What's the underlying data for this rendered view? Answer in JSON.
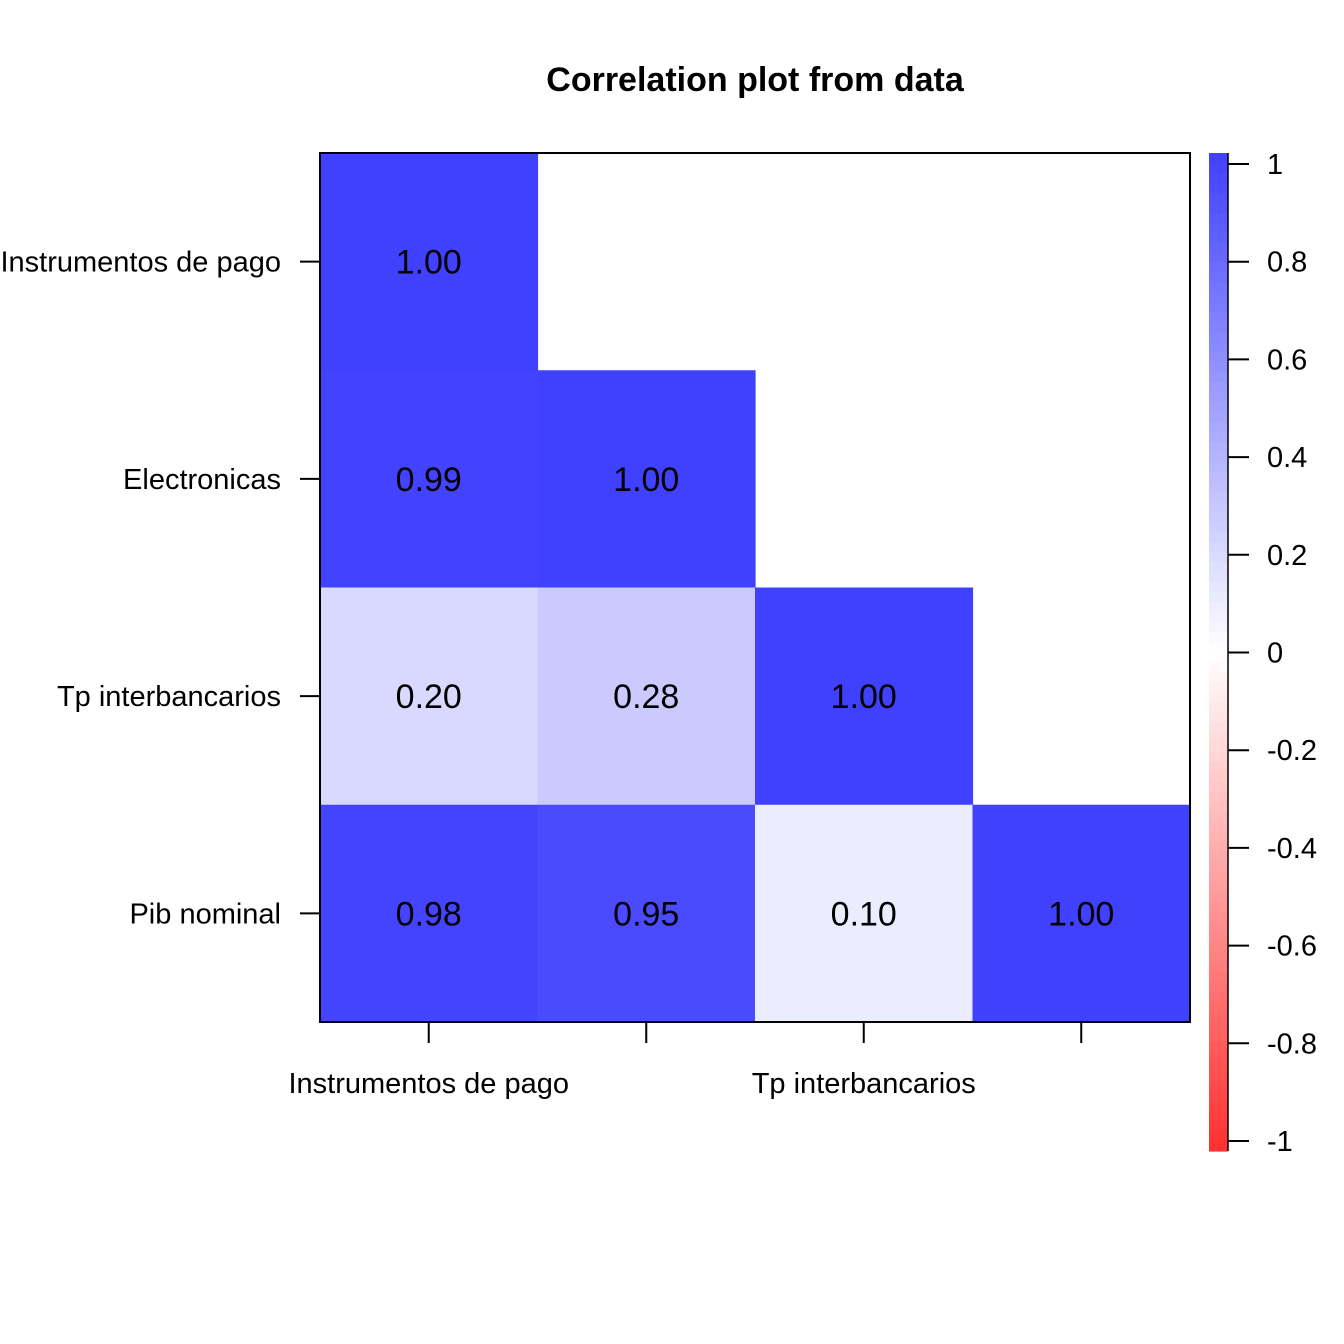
{
  "chart_data": {
    "type": "heatmap",
    "subtype": "lower-triangular correlation matrix",
    "title": "Correlation plot from data",
    "variables": [
      "Instrumentos de pago",
      "Electronicas",
      "Tp interbancarios",
      "Pib nominal"
    ],
    "row_labels": [
      "Instrumentos de pago",
      "Electronicas",
      "Tp interbancarios",
      "Pib nominal"
    ],
    "x_tick_labels_shown": [
      "Instrumentos de pago",
      "",
      "Tp interbancarios",
      ""
    ],
    "matrix": [
      [
        1.0,
        null,
        null,
        null
      ],
      [
        0.99,
        1.0,
        null,
        null
      ],
      [
        0.2,
        0.28,
        1.0,
        null
      ],
      [
        0.98,
        0.95,
        0.1,
        1.0
      ]
    ],
    "value_labels": [
      [
        "1.00",
        "",
        "",
        ""
      ],
      [
        "0.99",
        "1.00",
        "",
        ""
      ],
      [
        "0.20",
        "0.28",
        "1.00",
        ""
      ],
      [
        "0.98",
        "0.95",
        "0.10",
        "1.00"
      ]
    ],
    "color_scale": {
      "min": -1,
      "max": 1,
      "colors": {
        "negative": "#ff3030",
        "zero": "#ffffff",
        "positive": "#4040ff"
      },
      "ticks": [
        1,
        0.8,
        0.6,
        0.4,
        0.2,
        0,
        -0.2,
        -0.4,
        -0.6,
        -0.8,
        -1
      ],
      "tick_labels": [
        "1",
        "0.8",
        "0.6",
        "0.4",
        "0.2",
        "0",
        "-0.2",
        "-0.4",
        "-0.6",
        "-0.8",
        "-1"
      ],
      "placement": "right"
    },
    "grid": false,
    "legend": "colorbar-right"
  }
}
